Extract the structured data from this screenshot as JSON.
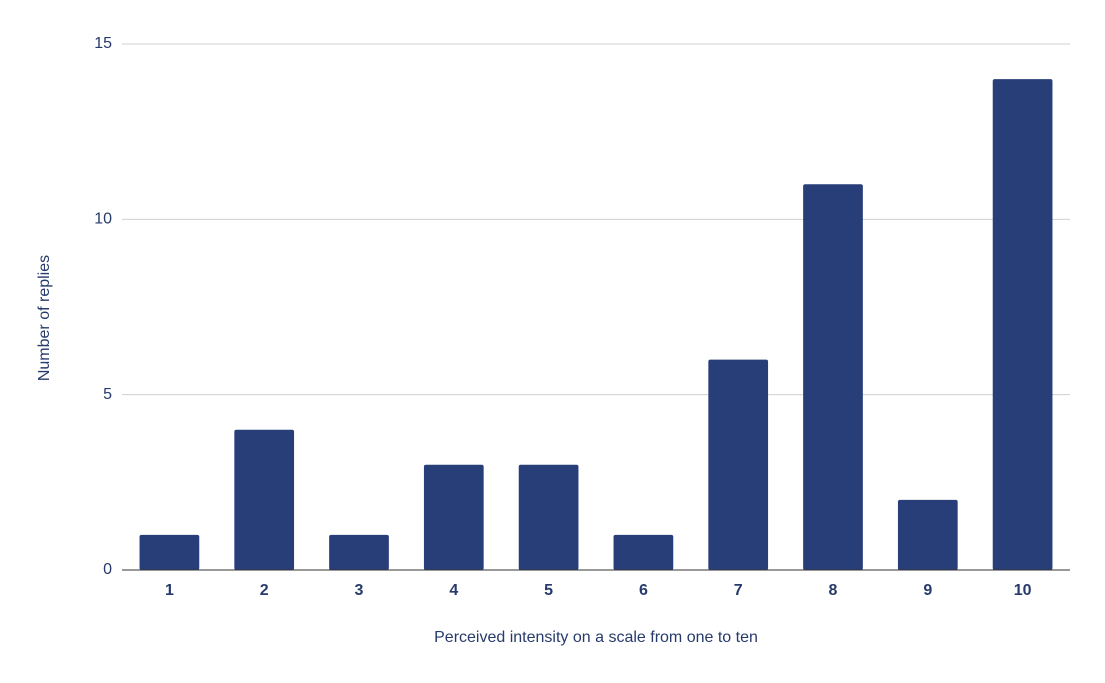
{
  "chart_data": {
    "type": "bar",
    "x_label": "Perceived intensity on a scale from one to ten",
    "y_label": "Number of replies",
    "categories": [
      "1",
      "2",
      "3",
      "4",
      "5",
      "6",
      "7",
      "8",
      "9",
      "10"
    ],
    "values": [
      1,
      4,
      1,
      3,
      3,
      1,
      6,
      11,
      2,
      14
    ],
    "color": "#283e79",
    "ylim": [
      0,
      15
    ],
    "yticks": [
      0,
      5,
      10,
      15
    ],
    "grid": true
  }
}
